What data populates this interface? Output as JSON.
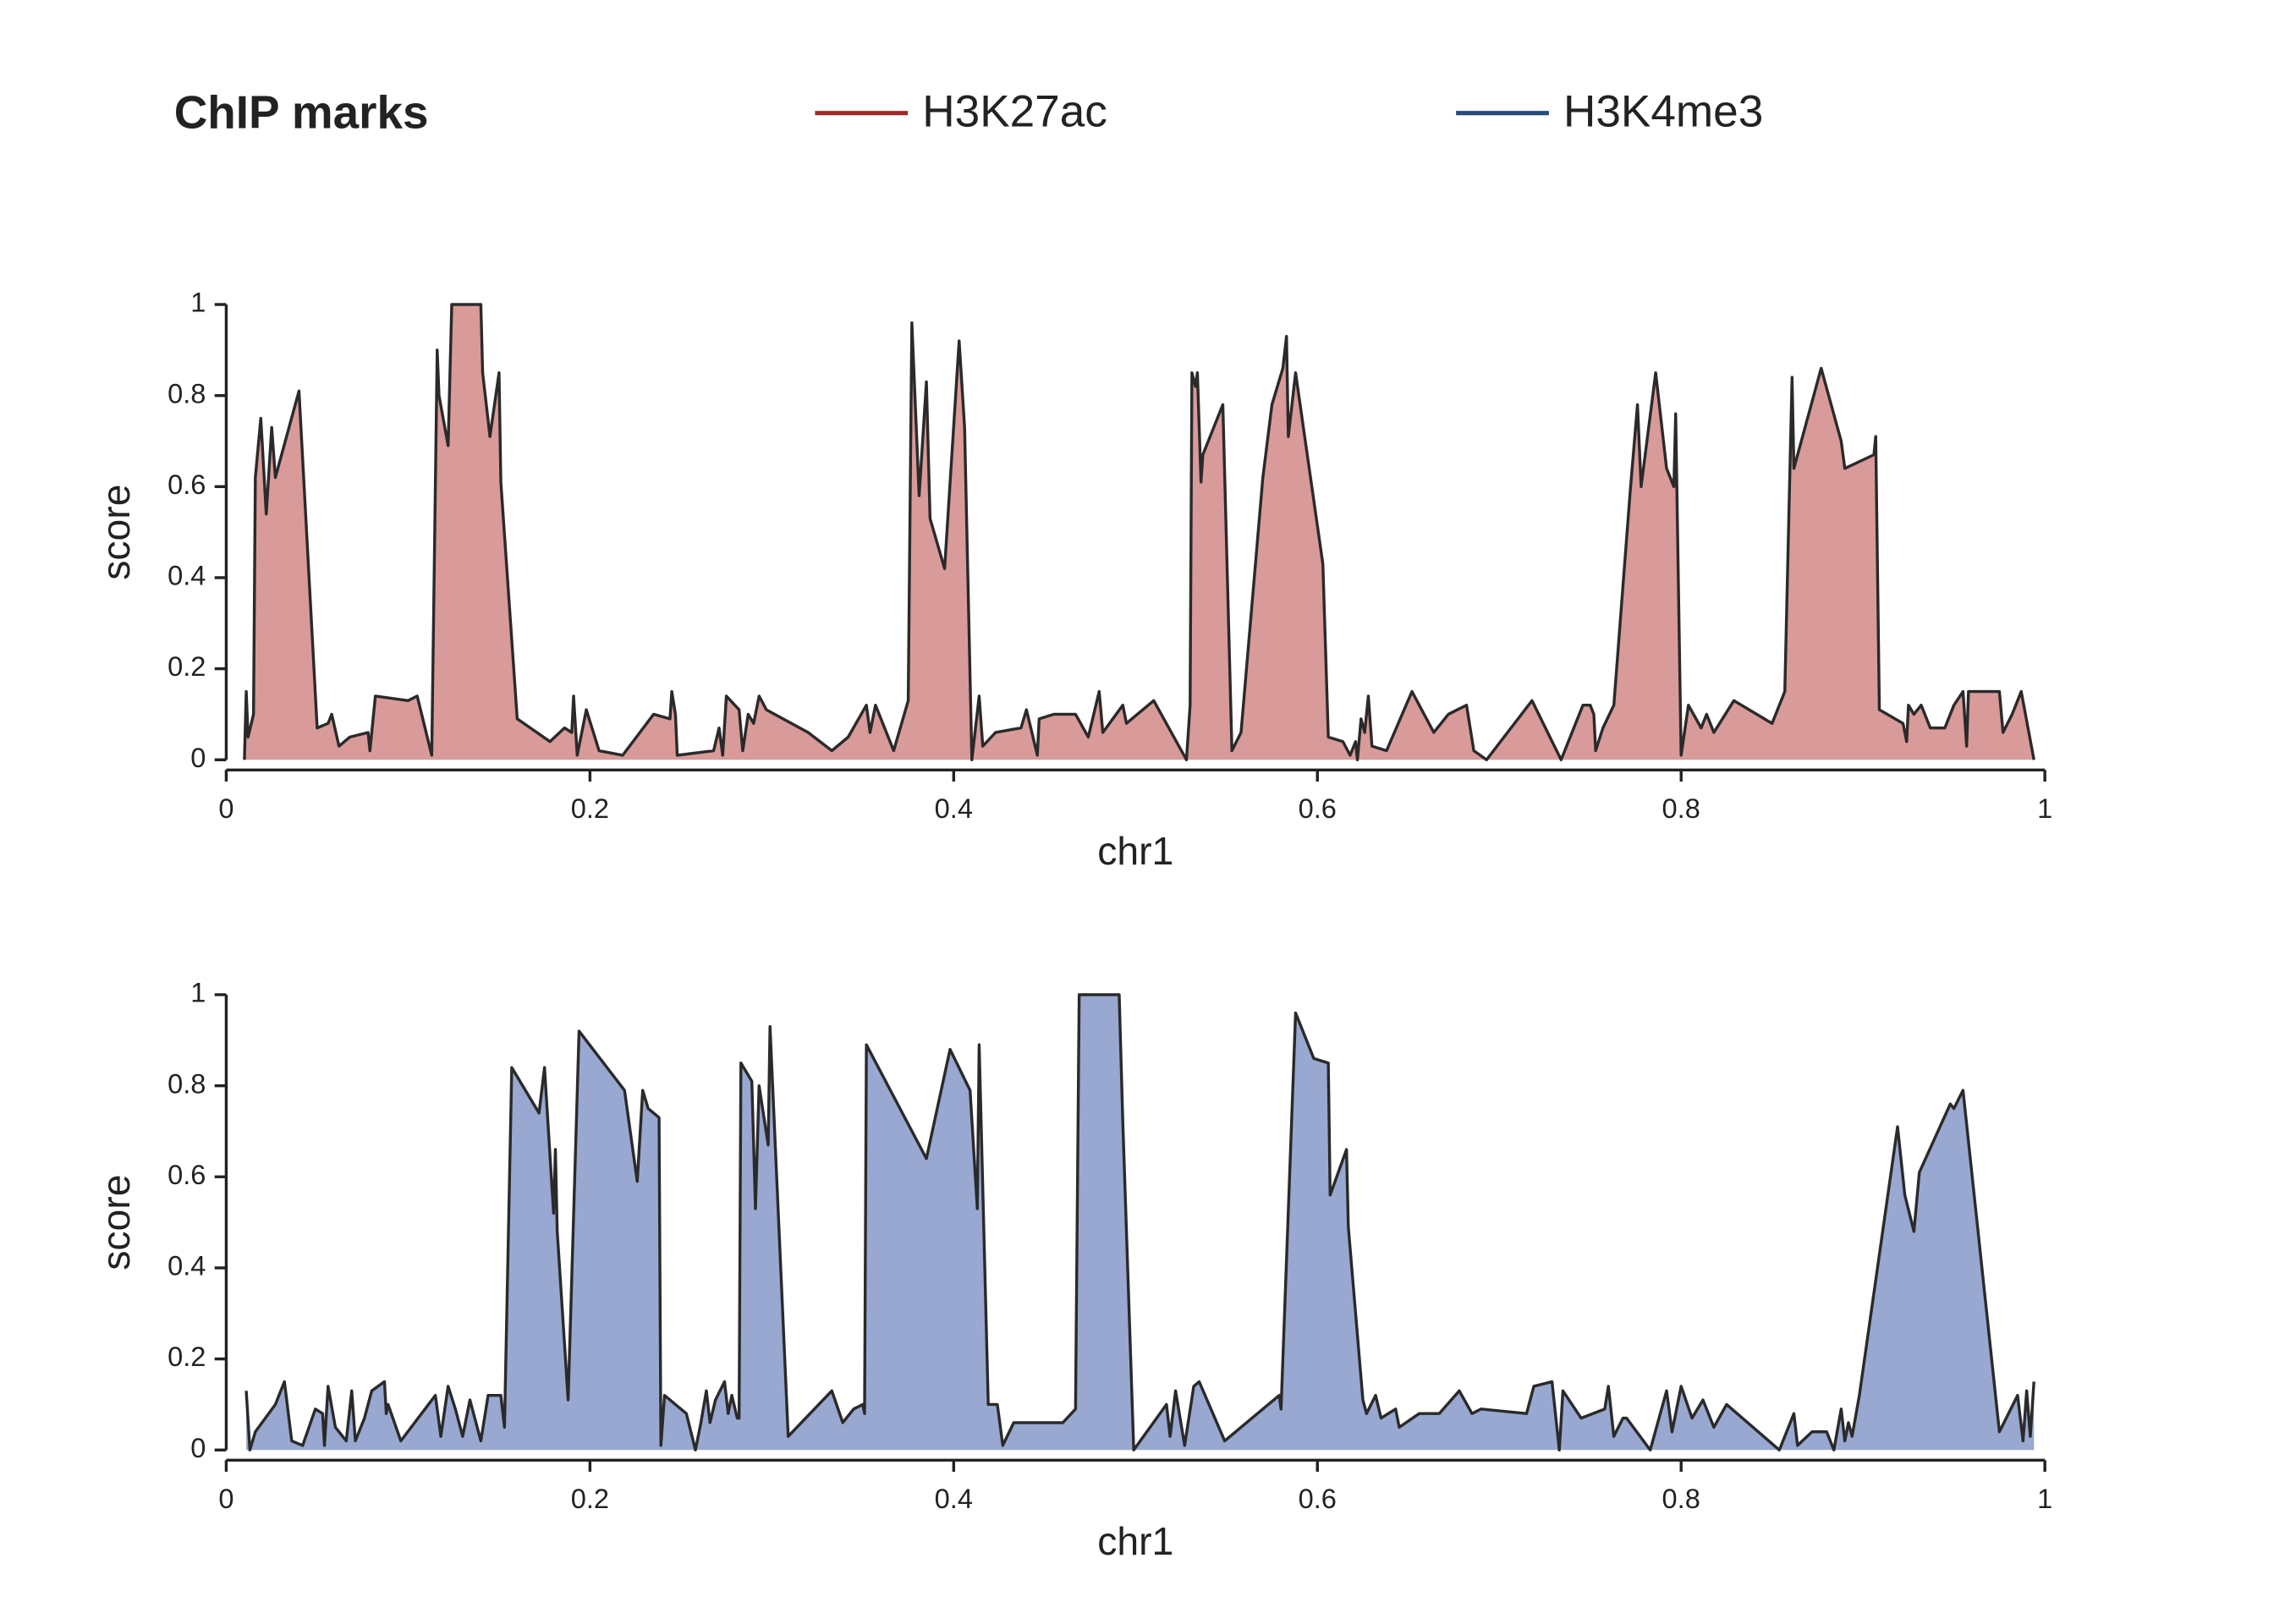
{
  "chart_data": {
    "type": "area",
    "title": "ChIP marks",
    "xlabel": "chr1",
    "ylabel": "score",
    "xlim": [
      0,
      1
    ],
    "ylim": [
      0,
      1
    ],
    "xticks": [
      0,
      0.2,
      0.4,
      0.6,
      0.8,
      1
    ],
    "yticks": [
      0,
      0.2,
      0.4,
      0.6,
      0.8,
      1
    ],
    "series": [
      {
        "name": "H3K27ac",
        "color": "#a3282b",
        "fill": "#d99a9a",
        "x": [
          0.01,
          0.011,
          0.012,
          0.015,
          0.016,
          0.019,
          0.022,
          0.025,
          0.027,
          0.04,
          0.05,
          0.056,
          0.058,
          0.062,
          0.068,
          0.078,
          0.079,
          0.082,
          0.1,
          0.105,
          0.113,
          0.116,
          0.117,
          0.122,
          0.124,
          0.14,
          0.141,
          0.145,
          0.15,
          0.151,
          0.16,
          0.178,
          0.186,
          0.19,
          0.191,
          0.193,
          0.198,
          0.205,
          0.218,
          0.235,
          0.244,
          0.245,
          0.247,
          0.248,
          0.268,
          0.271,
          0.273,
          0.275,
          0.282,
          0.284,
          0.287,
          0.29,
          0.293,
          0.297,
          0.32,
          0.333,
          0.342,
          0.352,
          0.354,
          0.357,
          0.367,
          0.375,
          0.377,
          0.381,
          0.385,
          0.387,
          0.395,
          0.403,
          0.406,
          0.41,
          0.414,
          0.416,
          0.423,
          0.437,
          0.44,
          0.446,
          0.447,
          0.455,
          0.467,
          0.474,
          0.48,
          0.482,
          0.493,
          0.495,
          0.51,
          0.528,
          0.53,
          0.531,
          0.533,
          0.534,
          0.536,
          0.537,
          0.548,
          0.553,
          0.558,
          0.57,
          0.575,
          0.581,
          0.583,
          0.584,
          0.588,
          0.603,
          0.606,
          0.614,
          0.618,
          0.621,
          0.622,
          0.624,
          0.626,
          0.628,
          0.63,
          0.638,
          0.652,
          0.664,
          0.672,
          0.682,
          0.686,
          0.693,
          0.718,
          0.734,
          0.746,
          0.75,
          0.752,
          0.753,
          0.757,
          0.763,
          0.772,
          0.776,
          0.778,
          0.786,
          0.792,
          0.796,
          0.797,
          0.8,
          0.804,
          0.811,
          0.814,
          0.818,
          0.829,
          0.85,
          0.857,
          0.861,
          0.862,
          0.877,
          0.888,
          0.89,
          0.906,
          0.907,
          0.909,
          0.922,
          0.924,
          0.925,
          0.928,
          0.932,
          0.937,
          0.945,
          0.95,
          0.955,
          0.957,
          0.958,
          0.975,
          0.977,
          0.982,
          0.987,
          0.994
        ],
        "values": [
          0,
          0.15,
          0.05,
          0.1,
          0.62,
          0.75,
          0.54,
          0.73,
          0.62,
          0.81,
          0.07,
          0.08,
          0.1,
          0.03,
          0.05,
          0.06,
          0.02,
          0.14,
          0.13,
          0.14,
          0.01,
          0.9,
          0.8,
          0.69,
          1.0,
          1.0,
          0.85,
          0.71,
          0.85,
          0.61,
          0.09,
          0.04,
          0.07,
          0.06,
          0.14,
          0.01,
          0.11,
          0.02,
          0.01,
          0.1,
          0.09,
          0.15,
          0.1,
          0.01,
          0.02,
          0.07,
          0.01,
          0.14,
          0.11,
          0.02,
          0.1,
          0.08,
          0.14,
          0.11,
          0.06,
          0.02,
          0.05,
          0.12,
          0.06,
          0.12,
          0.02,
          0.13,
          0.96,
          0.58,
          0.83,
          0.53,
          0.42,
          0.92,
          0.73,
          0.0,
          0.14,
          0.03,
          0.06,
          0.07,
          0.11,
          0.01,
          0.09,
          0.1,
          0.1,
          0.05,
          0.15,
          0.06,
          0.12,
          0.08,
          0.13,
          0.0,
          0.12,
          0.85,
          0.82,
          0.85,
          0.61,
          0.67,
          0.78,
          0.02,
          0.06,
          0.62,
          0.78,
          0.86,
          0.93,
          0.71,
          0.85,
          0.43,
          0.05,
          0.04,
          0.01,
          0.04,
          0.0,
          0.09,
          0.06,
          0.14,
          0.03,
          0.02,
          0.15,
          0.06,
          0.1,
          0.12,
          0.02,
          0.0,
          0.13,
          0.0,
          0.12,
          0.12,
          0.1,
          0.02,
          0.07,
          0.12,
          0.59,
          0.78,
          0.6,
          0.85,
          0.64,
          0.6,
          0.76,
          0.01,
          0.12,
          0.07,
          0.1,
          0.06,
          0.13,
          0.08,
          0.15,
          0.84,
          0.64,
          0.86,
          0.7,
          0.64,
          0.67,
          0.71,
          0.11,
          0.08,
          0.04,
          0.12,
          0.1,
          0.12,
          0.07,
          0.07,
          0.12,
          0.15,
          0.03,
          0.15,
          0.15,
          0.06,
          0.1,
          0.15,
          0.0
        ]
      },
      {
        "name": "H3K4me3",
        "color": "#274a78",
        "fill": "#99a8d0",
        "x": [
          0.011,
          0.013,
          0.016,
          0.027,
          0.032,
          0.036,
          0.042,
          0.049,
          0.053,
          0.054,
          0.056,
          0.06,
          0.066,
          0.069,
          0.071,
          0.076,
          0.08,
          0.087,
          0.088,
          0.089,
          0.096,
          0.115,
          0.118,
          0.122,
          0.126,
          0.13,
          0.134,
          0.14,
          0.144,
          0.151,
          0.153,
          0.157,
          0.172,
          0.175,
          0.18,
          0.181,
          0.182,
          0.188,
          0.194,
          0.219,
          0.226,
          0.229,
          0.232,
          0.238,
          0.239,
          0.241,
          0.253,
          0.258,
          0.261,
          0.264,
          0.266,
          0.269,
          0.274,
          0.276,
          0.278,
          0.281,
          0.282,
          0.283,
          0.289,
          0.291,
          0.293,
          0.298,
          0.299,
          0.302,
          0.309,
          0.333,
          0.339,
          0.345,
          0.35,
          0.351,
          0.352,
          0.385,
          0.398,
          0.409,
          0.413,
          0.414,
          0.419,
          0.424,
          0.427,
          0.433,
          0.46,
          0.467,
          0.469,
          0.491,
          0.493,
          0.499,
          0.517,
          0.519,
          0.522,
          0.527,
          0.532,
          0.535,
          0.549,
          0.579,
          0.58,
          0.588,
          0.598,
          0.606,
          0.607,
          0.616,
          0.617,
          0.625,
          0.627,
          0.632,
          0.635,
          0.643,
          0.645,
          0.656,
          0.667,
          0.678,
          0.685,
          0.69,
          0.715,
          0.719,
          0.729,
          0.733,
          0.735,
          0.745,
          0.758,
          0.76,
          0.763,
          0.768,
          0.77,
          0.783,
          0.792,
          0.795,
          0.8,
          0.806,
          0.812,
          0.818,
          0.825,
          0.854,
          0.862,
          0.864,
          0.872,
          0.88,
          0.884,
          0.888,
          0.89,
          0.892,
          0.894,
          0.898,
          0.919,
          0.923,
          0.928,
          0.931,
          0.948,
          0.95,
          0.955,
          0.975,
          0.985,
          0.988,
          0.99,
          0.992,
          0.994
        ],
        "values": [
          0.13,
          0.0,
          0.04,
          0.1,
          0.15,
          0.02,
          0.01,
          0.09,
          0.08,
          0.01,
          0.14,
          0.05,
          0.02,
          0.13,
          0.02,
          0.07,
          0.13,
          0.15,
          0.08,
          0.1,
          0.02,
          0.12,
          0.03,
          0.14,
          0.09,
          0.03,
          0.11,
          0.02,
          0.12,
          0.12,
          0.05,
          0.84,
          0.74,
          0.84,
          0.52,
          0.66,
          0.48,
          0.11,
          0.92,
          0.79,
          0.59,
          0.79,
          0.75,
          0.73,
          0.01,
          0.12,
          0.08,
          0.0,
          0.06,
          0.13,
          0.06,
          0.11,
          0.15,
          0.08,
          0.12,
          0.07,
          0.07,
          0.85,
          0.81,
          0.53,
          0.8,
          0.67,
          0.93,
          0.66,
          0.03,
          0.13,
          0.06,
          0.09,
          0.1,
          0.08,
          0.89,
          0.64,
          0.88,
          0.79,
          0.53,
          0.89,
          0.1,
          0.1,
          0.01,
          0.06,
          0.06,
          0.09,
          1.0,
          1.0,
          0.72,
          0.0,
          0.1,
          0.03,
          0.13,
          0.01,
          0.14,
          0.15,
          0.02,
          0.12,
          0.09,
          0.96,
          0.86,
          0.85,
          0.56,
          0.66,
          0.49,
          0.11,
          0.08,
          0.12,
          0.07,
          0.09,
          0.05,
          0.08,
          0.08,
          0.13,
          0.08,
          0.09,
          0.08,
          0.14,
          0.15,
          0.0,
          0.13,
          0.07,
          0.09,
          0.14,
          0.03,
          0.07,
          0.07,
          0.0,
          0.13,
          0.04,
          0.14,
          0.07,
          0.11,
          0.05,
          0.1,
          0.0,
          0.08,
          0.01,
          0.04,
          0.04,
          0.0,
          0.09,
          0.02,
          0.06,
          0.03,
          0.12,
          0.71,
          0.56,
          0.48,
          0.61,
          0.76,
          0.75,
          0.79,
          0.04,
          0.12,
          0.02,
          0.13,
          0.03,
          0.15
        ]
      }
    ]
  }
}
